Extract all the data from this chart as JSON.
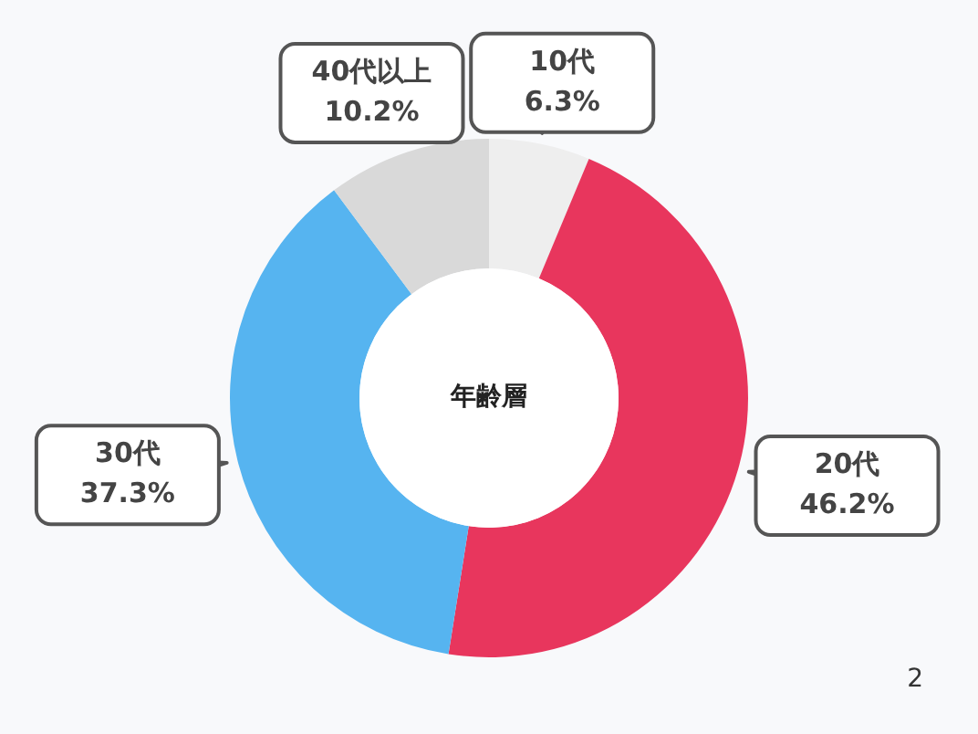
{
  "chart_data": {
    "type": "donut",
    "title": "年齢層",
    "categories": [
      "10代",
      "20代",
      "30代",
      "40代以上"
    ],
    "values": [
      6.3,
      46.2,
      37.3,
      10.2
    ],
    "value_labels": [
      "6.3%",
      "46.2%",
      "37.3%",
      "10.2%"
    ],
    "colors": [
      "#eeeeee",
      "#e8365d",
      "#56b4f0",
      "#d9d9d9"
    ],
    "legend": false,
    "annotations": [
      "2"
    ]
  }
}
